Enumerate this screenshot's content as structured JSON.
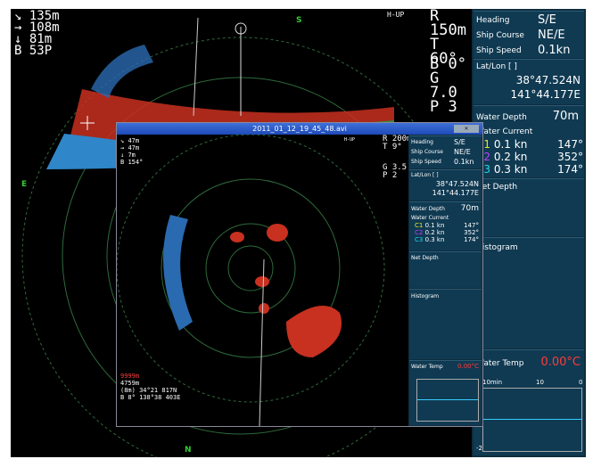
{
  "main": {
    "readout_left": [
      "135m",
      "108m",
      "81m",
      "53P"
    ],
    "readout_left_prefix": [
      "",
      "",
      "",
      "B"
    ],
    "mode": "H-UP",
    "range_label": "R",
    "range": "150m",
    "tilt_label": "T",
    "tilt": "60°",
    "b_label": "B",
    "b_value": "0°",
    "g_label": "G",
    "g_value": "7.0",
    "p_label": "P",
    "p_value": "3",
    "compass_s": "S",
    "compass_e": "E",
    "compass_n": "N"
  },
  "side": {
    "heading_label": "Heading",
    "heading_value": "S/E",
    "course_label": "Ship Course",
    "course_value": "NE/E",
    "speed_label": "Ship Speed",
    "speed_value": "0.1kn",
    "latlon_label": "Lat/Lon [ ]",
    "lat": "38°47.524N",
    "lon": "141°44.177E",
    "depth_label": "Water Depth",
    "depth_value": "70m",
    "current_label": "Water Current",
    "currents": [
      {
        "c": "C1",
        "speed": "0.1 kn",
        "dir": "147°",
        "color": "#e8e820"
      },
      {
        "c": "C2",
        "speed": "0.2 kn",
        "dir": "352°",
        "color": "#c040ff"
      },
      {
        "c": "C3",
        "speed": "0.3 kn",
        "dir": "174°",
        "color": "#20d8e8"
      }
    ],
    "net_depth_label": "Net Depth",
    "histogram_label": "Histogram",
    "temp_label": "Water Temp",
    "temp_value": "0.00°C",
    "graph_min": "10min",
    "graph_mid": "10",
    "graph_max": "0",
    "graph_y": "-2"
  },
  "overlay": {
    "title": "2011_01_12_19_45_48.avi",
    "readout_left": [
      "47m",
      "47m",
      "7m",
      "154°"
    ],
    "mode": "H-UP",
    "range": "R 200m",
    "tilt": "T 9°",
    "g": "G 3.5",
    "p": "P 2",
    "heading_label": "Heading",
    "heading_value": "S/E",
    "course_label": "Ship Course",
    "course_value": "NE/E",
    "speed_label": "Ship Speed",
    "speed_value": "0.1kn",
    "latlon_label": "Lat/Lon [ ]",
    "lat": "38°47.524N",
    "lon": "141°44.177E",
    "depth_label": "Water Depth",
    "depth_value": "70m",
    "current_label": "Water Current",
    "currents": [
      {
        "c": "C1",
        "speed": "0.1 kn",
        "dir": "147°"
      },
      {
        "c": "C2",
        "speed": "0.2 kn",
        "dir": "352°"
      },
      {
        "c": "C3",
        "speed": "0.3 kn",
        "dir": "174°"
      }
    ],
    "net_depth_label": "Net Depth",
    "histogram_label": "Histogram",
    "temp_label": "Water Temp",
    "temp_value": "0.00°C",
    "bottom_1": "9999m",
    "bottom_2": "4759m",
    "bottom_3": "(8m)  34°21 817N",
    "bottom_4": "B  8°  138°38 403E"
  }
}
